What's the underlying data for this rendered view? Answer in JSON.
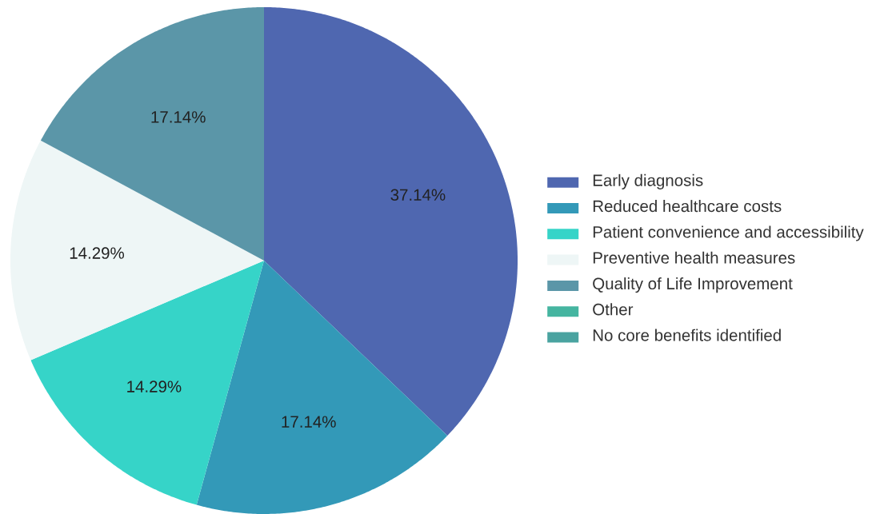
{
  "chart_data": {
    "type": "pie",
    "categories": [
      "Early diagnosis",
      "Reduced healthcare costs",
      "Patient convenience and accessibility",
      "Preventive health measures",
      "Quality of Life Improvement",
      "Other",
      "No core benefits identified"
    ],
    "values": [
      37.14,
      17.14,
      14.29,
      14.29,
      17.14,
      0,
      0
    ],
    "colors": [
      "#4f67b0",
      "#3399b8",
      "#36d4c8",
      "#eef6f6",
      "#5b96a8",
      "#45b5a0",
      "#4aa3a0"
    ],
    "value_labels": [
      "37.14%",
      "17.14%",
      "14.29%",
      "14.29%",
      "17.14%",
      null,
      null
    ],
    "legend": "right"
  }
}
